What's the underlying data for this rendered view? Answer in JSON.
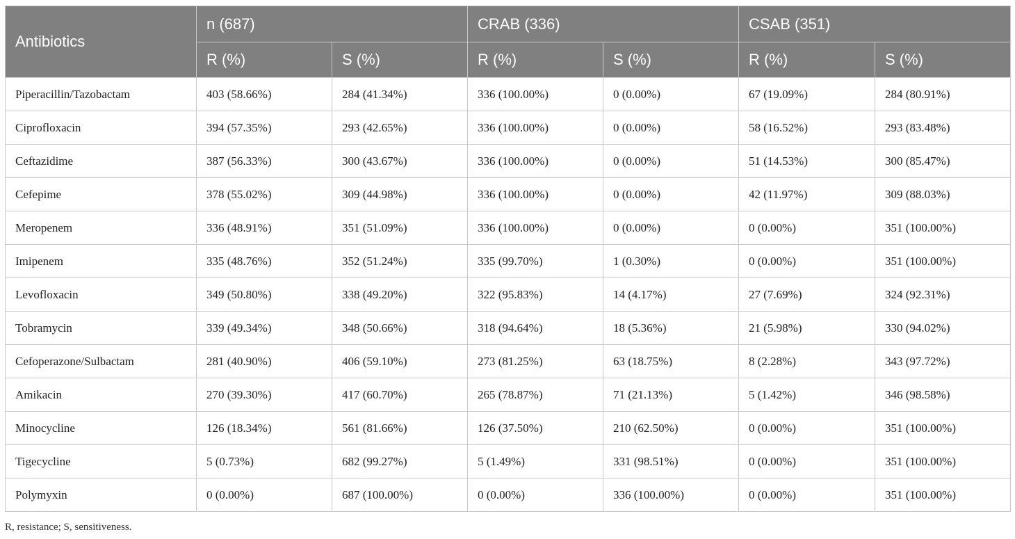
{
  "table": {
    "header_top": {
      "antibiotics": "Antibiotics",
      "groups": [
        "n (687)",
        "CRAB (336)",
        "CSAB (351)"
      ]
    },
    "header_sub": [
      "R (%)",
      "S (%)",
      "R (%)",
      "S (%)",
      "R (%)",
      "S (%)"
    ],
    "rows": [
      [
        "Piperacillin/Tazobactam",
        "403 (58.66%)",
        "284 (41.34%)",
        "336 (100.00%)",
        "0 (0.00%)",
        "67 (19.09%)",
        "284 (80.91%)"
      ],
      [
        "Ciprofloxacin",
        "394 (57.35%)",
        "293 (42.65%)",
        "336 (100.00%)",
        "0 (0.00%)",
        "58 (16.52%)",
        "293 (83.48%)"
      ],
      [
        "Ceftazidime",
        "387 (56.33%)",
        "300 (43.67%)",
        "336 (100.00%)",
        "0 (0.00%)",
        "51 (14.53%)",
        "300 (85.47%)"
      ],
      [
        "Cefepime",
        "378 (55.02%)",
        "309 (44.98%)",
        "336 (100.00%)",
        "0 (0.00%)",
        "42 (11.97%)",
        "309 (88.03%)"
      ],
      [
        "Meropenem",
        "336 (48.91%)",
        "351 (51.09%)",
        "336 (100.00%)",
        "0 (0.00%)",
        "0 (0.00%)",
        "351 (100.00%)"
      ],
      [
        "Imipenem",
        "335 (48.76%)",
        "352 (51.24%)",
        "335 (99.70%)",
        "1 (0.30%)",
        "0 (0.00%)",
        "351 (100.00%)"
      ],
      [
        "Levofloxacin",
        "349 (50.80%)",
        "338 (49.20%)",
        "322 (95.83%)",
        "14 (4.17%)",
        "27 (7.69%)",
        "324 (92.31%)"
      ],
      [
        "Tobramycin",
        "339 (49.34%)",
        "348 (50.66%)",
        "318 (94.64%)",
        "18 (5.36%)",
        "21 (5.98%)",
        "330 (94.02%)"
      ],
      [
        "Cefoperazone/Sulbactam",
        "281 (40.90%)",
        "406 (59.10%)",
        "273 (81.25%)",
        "63 (18.75%)",
        "8 (2.28%)",
        "343 (97.72%)"
      ],
      [
        "Amikacin",
        "270 (39.30%)",
        "417 (60.70%)",
        "265 (78.87%)",
        "71 (21.13%)",
        "5 (1.42%)",
        "346 (98.58%)"
      ],
      [
        "Minocycline",
        "126 (18.34%)",
        "561 (81.66%)",
        "126 (37.50%)",
        "210 (62.50%)",
        "0 (0.00%)",
        "351 (100.00%)"
      ],
      [
        "Tigecycline",
        "5 (0.73%)",
        "682 (99.27%)",
        "5 (1.49%)",
        "331 (98.51%)",
        "0 (0.00%)",
        "351 (100.00%)"
      ],
      [
        "Polymyxin",
        "0 (0.00%)",
        "687 (100.00%)",
        "0 (0.00%)",
        "336 (100.00%)",
        "0 (0.00%)",
        "351 (100.00%)"
      ]
    ]
  },
  "footnote": "R, resistance; S, sensitiveness.",
  "colors": {
    "header_bg": "#808080",
    "header_text": "#ffffff",
    "border": "#c9c9c9"
  }
}
